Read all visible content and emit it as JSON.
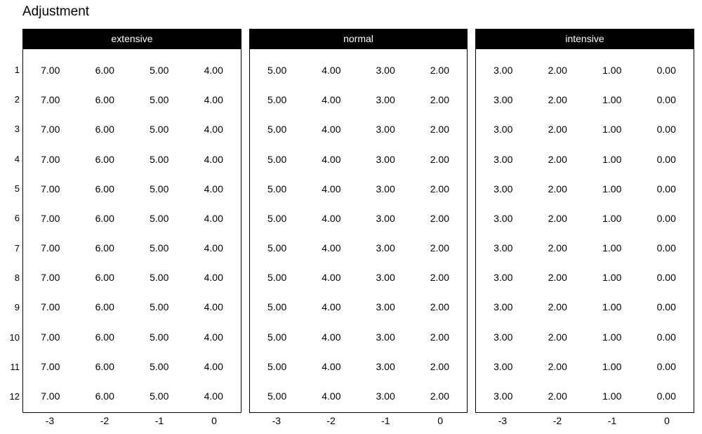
{
  "title": "Adjustment",
  "row_labels": [
    "1",
    "2",
    "3",
    "4",
    "5",
    "6",
    "7",
    "8",
    "9",
    "10",
    "11",
    "12"
  ],
  "x_labels": [
    "-3",
    "-2",
    "-1",
    "0"
  ],
  "panels": [
    {
      "label": "extensive",
      "row_values": [
        "7.00",
        "6.00",
        "5.00",
        "4.00"
      ]
    },
    {
      "label": "normal",
      "row_values": [
        "5.00",
        "4.00",
        "3.00",
        "2.00"
      ]
    },
    {
      "label": "intensive",
      "row_values": [
        "3.00",
        "2.00",
        "1.00",
        "0.00"
      ]
    }
  ],
  "colors": {
    "background": "#ffffff",
    "header_bg": "#000000",
    "header_text": "#ffffff",
    "border": "#000000",
    "text": "#000000"
  },
  "chart_data": {
    "type": "table",
    "title": "Adjustment",
    "x_tick_labels": [
      -3,
      -2,
      -1,
      0
    ],
    "y_tick_labels": [
      1,
      2,
      3,
      4,
      5,
      6,
      7,
      8,
      9,
      10,
      11,
      12
    ],
    "legend_position": "none",
    "grid": false,
    "panels": [
      {
        "name": "extensive",
        "rows": [
          [
            7.0,
            6.0,
            5.0,
            4.0
          ],
          [
            7.0,
            6.0,
            5.0,
            4.0
          ],
          [
            7.0,
            6.0,
            5.0,
            4.0
          ],
          [
            7.0,
            6.0,
            5.0,
            4.0
          ],
          [
            7.0,
            6.0,
            5.0,
            4.0
          ],
          [
            7.0,
            6.0,
            5.0,
            4.0
          ],
          [
            7.0,
            6.0,
            5.0,
            4.0
          ],
          [
            7.0,
            6.0,
            5.0,
            4.0
          ],
          [
            7.0,
            6.0,
            5.0,
            4.0
          ],
          [
            7.0,
            6.0,
            5.0,
            4.0
          ],
          [
            7.0,
            6.0,
            5.0,
            4.0
          ],
          [
            7.0,
            6.0,
            5.0,
            4.0
          ]
        ]
      },
      {
        "name": "normal",
        "rows": [
          [
            5.0,
            4.0,
            3.0,
            2.0
          ],
          [
            5.0,
            4.0,
            3.0,
            2.0
          ],
          [
            5.0,
            4.0,
            3.0,
            2.0
          ],
          [
            5.0,
            4.0,
            3.0,
            2.0
          ],
          [
            5.0,
            4.0,
            3.0,
            2.0
          ],
          [
            5.0,
            4.0,
            3.0,
            2.0
          ],
          [
            5.0,
            4.0,
            3.0,
            2.0
          ],
          [
            5.0,
            4.0,
            3.0,
            2.0
          ],
          [
            5.0,
            4.0,
            3.0,
            2.0
          ],
          [
            5.0,
            4.0,
            3.0,
            2.0
          ],
          [
            5.0,
            4.0,
            3.0,
            2.0
          ],
          [
            5.0,
            4.0,
            3.0,
            2.0
          ]
        ]
      },
      {
        "name": "intensive",
        "rows": [
          [
            3.0,
            2.0,
            1.0,
            0.0
          ],
          [
            3.0,
            2.0,
            1.0,
            0.0
          ],
          [
            3.0,
            2.0,
            1.0,
            0.0
          ],
          [
            3.0,
            2.0,
            1.0,
            0.0
          ],
          [
            3.0,
            2.0,
            1.0,
            0.0
          ],
          [
            3.0,
            2.0,
            1.0,
            0.0
          ],
          [
            3.0,
            2.0,
            1.0,
            0.0
          ],
          [
            3.0,
            2.0,
            1.0,
            0.0
          ],
          [
            3.0,
            2.0,
            1.0,
            0.0
          ],
          [
            3.0,
            2.0,
            1.0,
            0.0
          ],
          [
            3.0,
            2.0,
            1.0,
            0.0
          ],
          [
            3.0,
            2.0,
            1.0,
            0.0
          ]
        ]
      }
    ]
  }
}
